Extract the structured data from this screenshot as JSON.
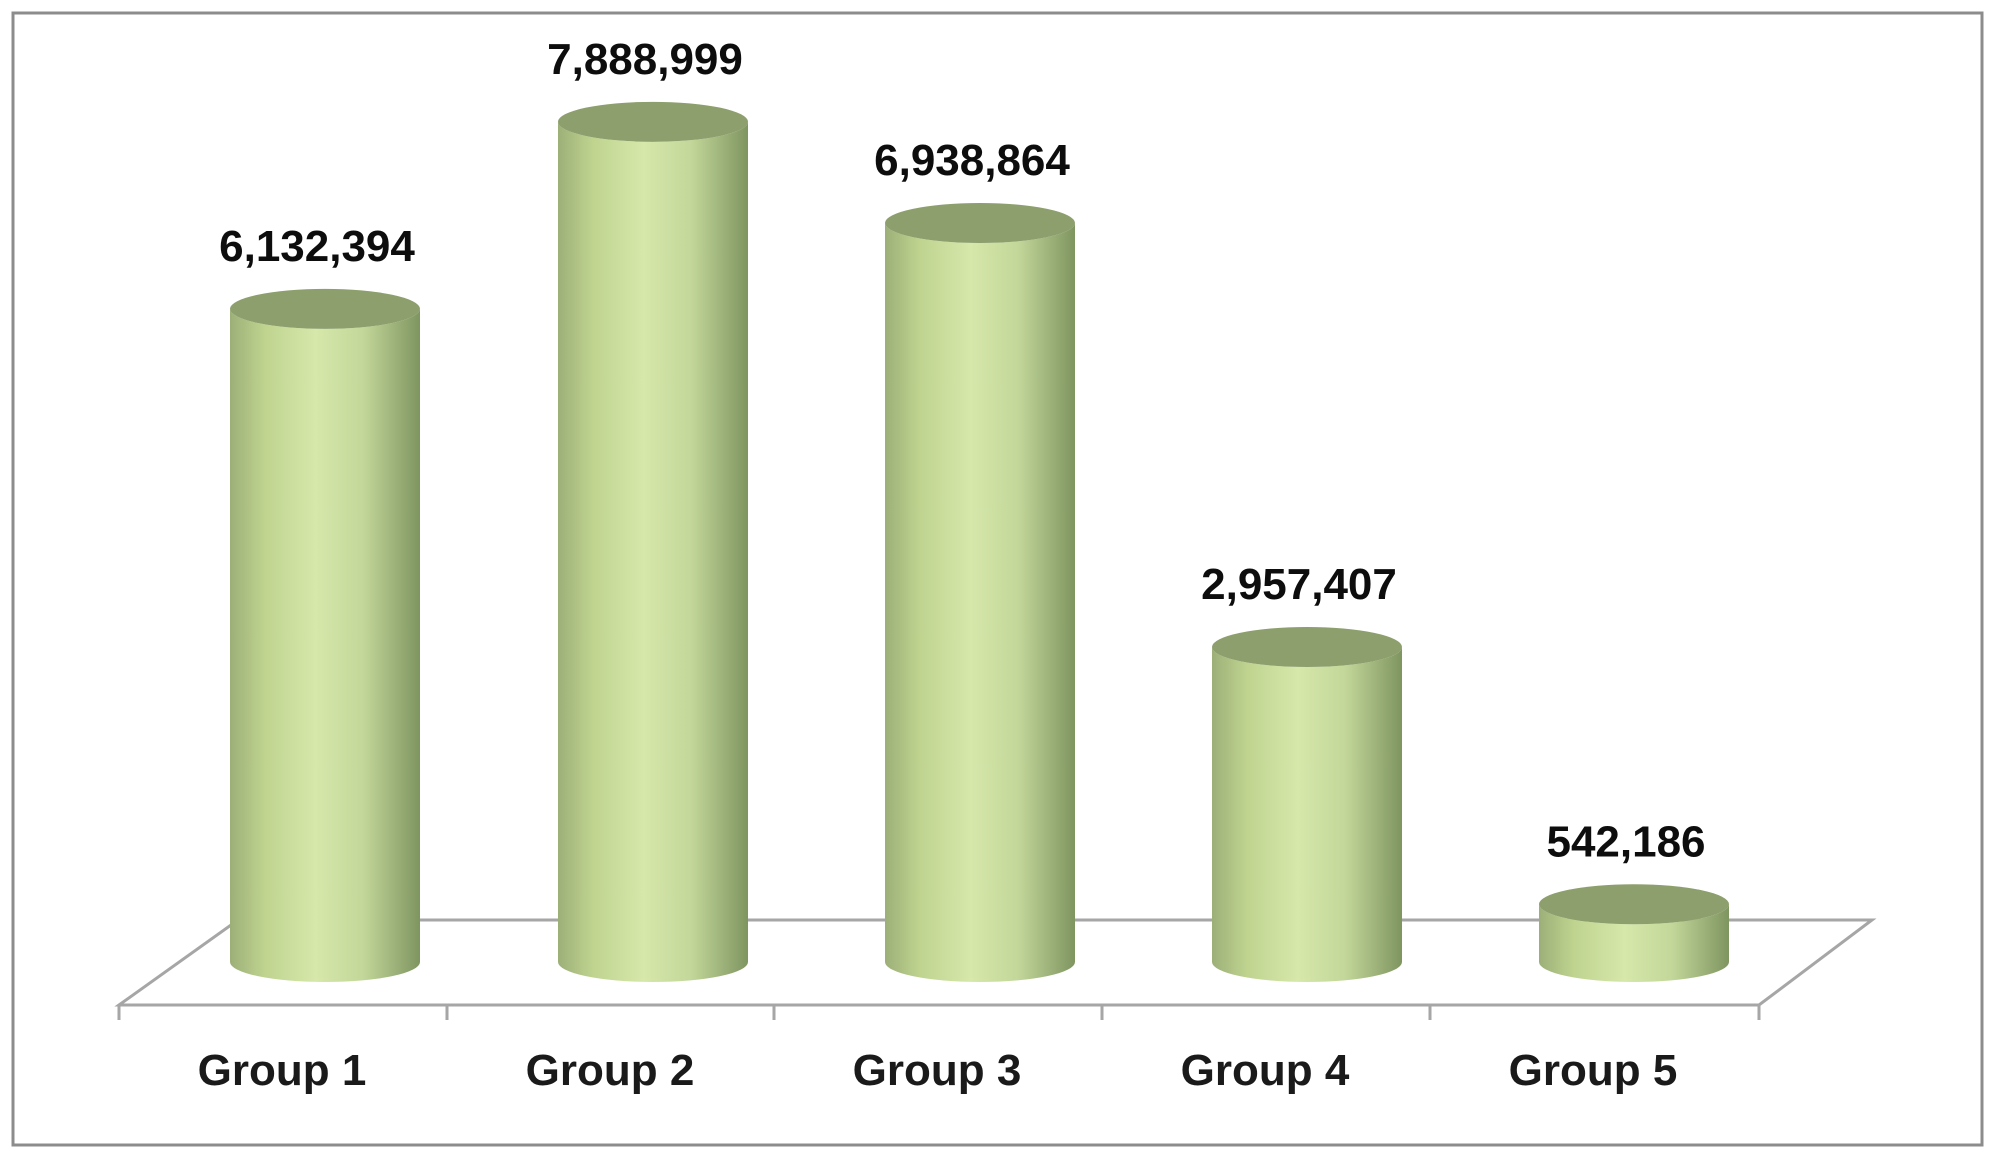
{
  "chart_data": {
    "type": "bar",
    "style": "3d-cylinder",
    "categories": [
      "Group 1",
      "Group 2",
      "Group 3",
      "Group 4",
      "Group 5"
    ],
    "values": [
      6132394,
      7888999,
      6938864,
      2957407,
      542186
    ],
    "value_labels": [
      "6,132,394",
      "7,888,999",
      "6,938,864",
      "2,957,407",
      "542,186"
    ],
    "title": "",
    "xlabel": "",
    "ylabel": "",
    "ylim": [
      0,
      8000000
    ],
    "grid": false,
    "legend": "none",
    "colors": {
      "bar_light": "#d3e4a6",
      "bar_mid": "#b4c98a",
      "bar_dark": "#7f9560",
      "bar_top": "#8c9f6c",
      "floor_line": "#a6a6a6",
      "frame_border": "#8c8c8c"
    }
  }
}
